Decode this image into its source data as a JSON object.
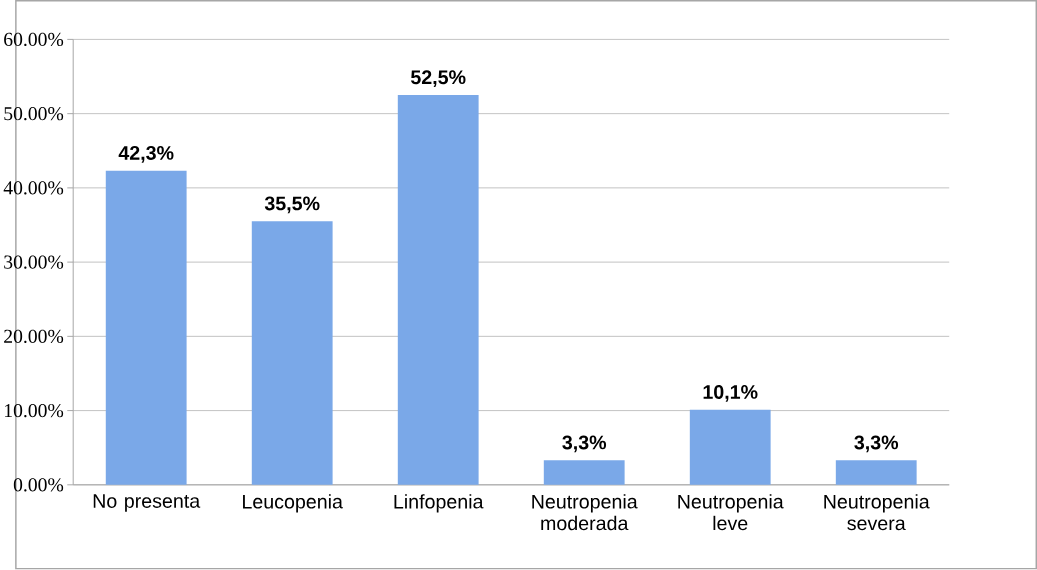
{
  "chart_data": {
    "type": "bar",
    "categories": [
      "No presenta",
      "Leucopenia",
      "Linfopenia",
      "Neutropenia moderada",
      "Neutropenia leve",
      "Neutropenia severa"
    ],
    "values": [
      42.3,
      35.5,
      52.5,
      3.3,
      10.1,
      3.3
    ],
    "value_labels": [
      "42,3%",
      "35,5%",
      "52,5%",
      "3,3%",
      "10,1%",
      "3,3%"
    ],
    "color": "#7aa8e8",
    "ylim": [
      0,
      60
    ],
    "yticks": [
      {
        "value": 0,
        "label": "0.00%"
      },
      {
        "value": 10,
        "label": "10.00%"
      },
      {
        "value": 20,
        "label": "20.00%"
      },
      {
        "value": 30,
        "label": "30.00%"
      },
      {
        "value": 40,
        "label": "40.00%"
      },
      {
        "value": 50,
        "label": "50.00%"
      },
      {
        "value": 60,
        "label": "60.00%"
      }
    ],
    "grid": "y"
  }
}
